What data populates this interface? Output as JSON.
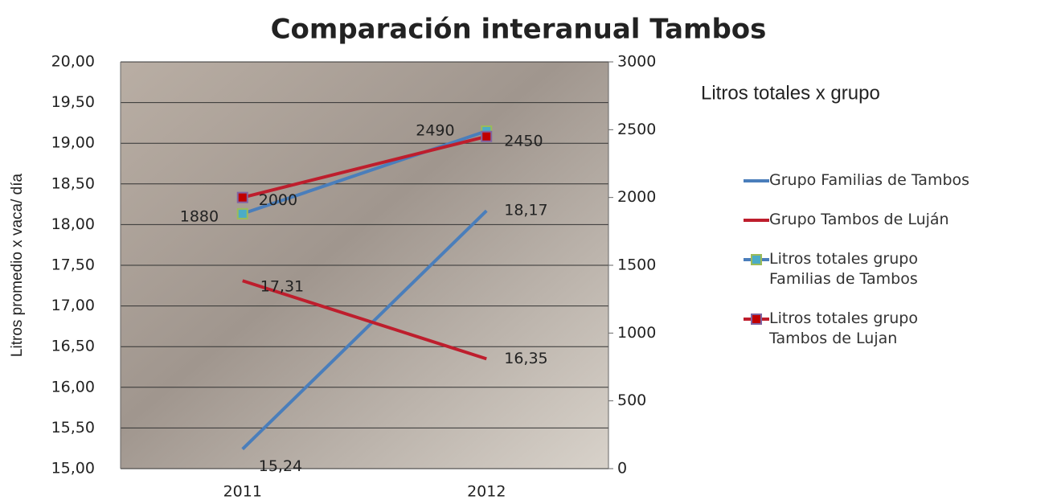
{
  "chart_data": {
    "type": "line",
    "title": "Comparación interanual Tambos",
    "y_label": "Litros promedio x vaca/ día",
    "annotation": "Litros totales x grupo",
    "categories": [
      "2011",
      "2012"
    ],
    "ylim": [
      15,
      20
    ],
    "yticks": [
      {
        "value": 15,
        "label": "15,00"
      },
      {
        "value": 15.5,
        "label": "15,50"
      },
      {
        "value": 16,
        "label": "16,00"
      },
      {
        "value": 16.5,
        "label": "16,50"
      },
      {
        "value": 17,
        "label": "17,00"
      },
      {
        "value": 17.5,
        "label": "17,50"
      },
      {
        "value": 18,
        "label": "18,00"
      },
      {
        "value": 18.5,
        "label": "18,50"
      },
      {
        "value": 19,
        "label": "19,00"
      },
      {
        "value": 19.5,
        "label": "19,50"
      },
      {
        "value": 20,
        "label": "20,00"
      }
    ],
    "y2lim": [
      0,
      3000
    ],
    "y2ticks": [
      0,
      500,
      1000,
      1500,
      2000,
      2500,
      3000
    ],
    "grid": true,
    "series": [
      {
        "name": "Grupo Familias de Tambos",
        "color": "#4a7ebb",
        "values": [
          15.24,
          18.17
        ],
        "value_labels": [
          "15,24",
          "18,17"
        ]
      },
      {
        "name": "Grupo Tambos de Luján",
        "color": "#be1e2d",
        "values": [
          17.31,
          16.35
        ],
        "value_labels": [
          "17,31",
          "16,35"
        ]
      },
      {
        "name": "Litros totales grupo Familias de Tambos",
        "color": "#4a7ebb",
        "axis": "y2",
        "marker": "square",
        "marker_color": "#4bacc6",
        "values": [
          1880,
          2490
        ]
      },
      {
        "name": "Litros totales grupo Tambos de Lujan",
        "color": "#be1e2d",
        "axis": "y2",
        "marker": "square",
        "marker_color": "#c00000",
        "values": [
          2000,
          2450
        ]
      }
    ]
  }
}
